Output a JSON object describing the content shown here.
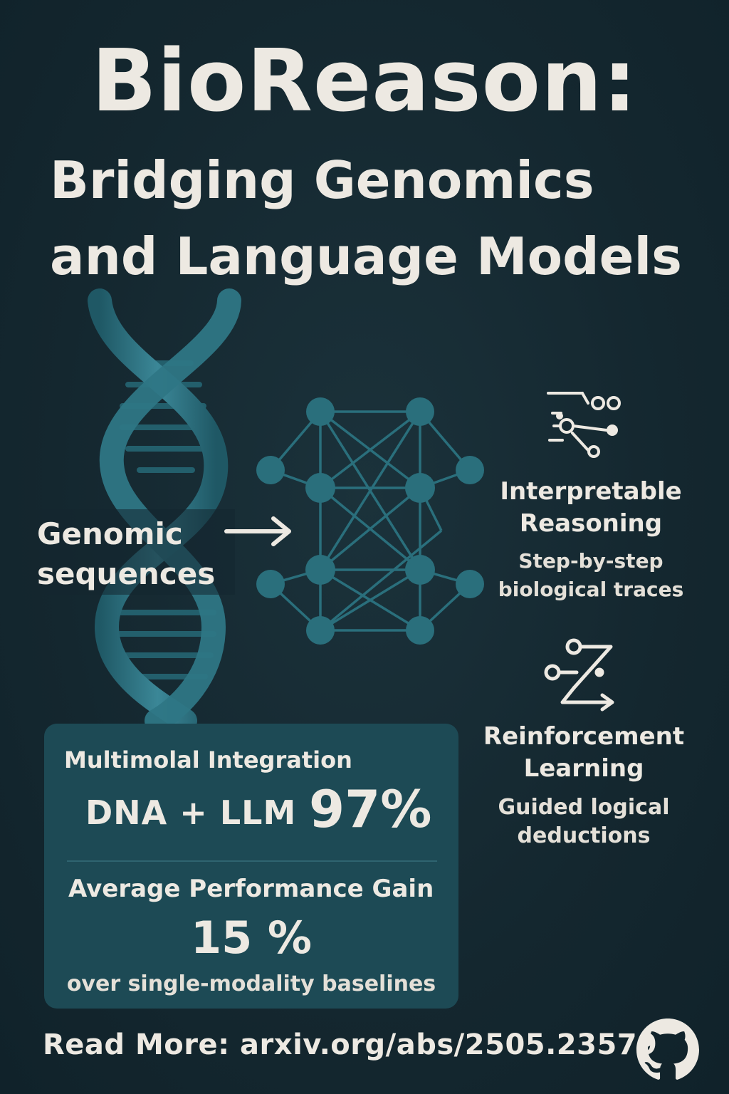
{
  "title": {
    "main": "BioReason:",
    "line2": "Bridging Genomics",
    "line3": "and Language Models"
  },
  "input_label": {
    "line1": "Genomic",
    "line2": "sequences"
  },
  "features": [
    {
      "icon": "branching-nodes-icon",
      "title_line1": "Interpretable",
      "title_line2": "Reasoning",
      "desc_line1": "Step-by-step",
      "desc_line2": "biological traces"
    },
    {
      "icon": "zigzag-path-arrow-icon",
      "title_line1": "Reinforcement",
      "title_line2": "Learning",
      "desc_line1": "Guided logical",
      "desc_line2": "deductions"
    }
  ],
  "stats": {
    "integration_title": "Multimolal Integration",
    "integration_value": "DNA + LLM",
    "integration_percent": "97%",
    "gain_title": "Average Performance Gain",
    "gain_percent": "15 %",
    "gain_desc": "over single-modality baselines"
  },
  "footer": {
    "read_more": "Read More: arxiv.org/abs/2505.23579",
    "icon": "github-icon"
  },
  "colors": {
    "background": "#14272f",
    "text": "#ede9e2",
    "teal": "#2a6f7c",
    "card": "#1d4a55"
  }
}
